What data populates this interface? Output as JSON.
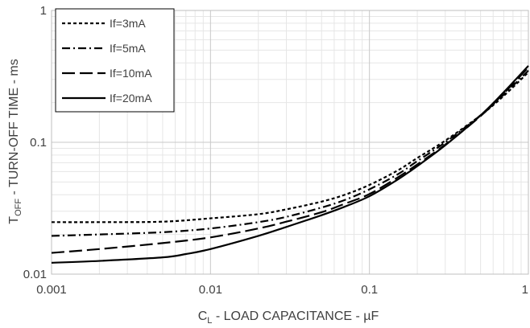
{
  "chart_data": {
    "type": "line",
    "x_scale": "log",
    "y_scale": "log",
    "xlim": [
      0.001,
      1
    ],
    "ylim": [
      0.01,
      1
    ],
    "grid": true,
    "legend_position": "top-left",
    "x_tick_labels": [
      "0.001",
      "0.01",
      "0.1",
      "1"
    ],
    "y_tick_labels": [
      "0.01",
      "0.1",
      "1"
    ],
    "xlabel": {
      "main": "C",
      "sub": "L",
      "rest": " - LOAD CAPACITANCE - µF"
    },
    "ylabel": {
      "main": "T",
      "sub": "OFF",
      "rest": " - TURN-OFF TIME - ms"
    },
    "series": [
      {
        "name": "If=3mA",
        "dash": "short-dash",
        "x": [
          0.001,
          0.002,
          0.005,
          0.01,
          0.02,
          0.03,
          0.05,
          0.07,
          0.1,
          0.15,
          0.2,
          0.3,
          0.5,
          0.7,
          1
        ],
        "y": [
          0.0248,
          0.0248,
          0.025,
          0.0265,
          0.0285,
          0.031,
          0.0355,
          0.04,
          0.0475,
          0.061,
          0.076,
          0.103,
          0.16,
          0.225,
          0.34
        ]
      },
      {
        "name": "If=5mA",
        "dash": "dash-dot",
        "x": [
          0.001,
          0.002,
          0.005,
          0.01,
          0.02,
          0.03,
          0.05,
          0.07,
          0.1,
          0.15,
          0.2,
          0.3,
          0.5,
          0.7,
          1
        ],
        "y": [
          0.0195,
          0.02,
          0.0208,
          0.0222,
          0.0248,
          0.0272,
          0.032,
          0.0365,
          0.044,
          0.057,
          0.072,
          0.1,
          0.16,
          0.23,
          0.35
        ]
      },
      {
        "name": "If=10mA",
        "dash": "long-dash",
        "x": [
          0.001,
          0.002,
          0.005,
          0.01,
          0.02,
          0.03,
          0.05,
          0.07,
          0.1,
          0.15,
          0.2,
          0.3,
          0.5,
          0.7,
          1
        ],
        "y": [
          0.0145,
          0.0155,
          0.0172,
          0.019,
          0.0222,
          0.025,
          0.0295,
          0.0342,
          0.0405,
          0.054,
          0.068,
          0.096,
          0.158,
          0.235,
          0.37
        ]
      },
      {
        "name": "If=20mA",
        "dash": "solid",
        "x": [
          0.001,
          0.002,
          0.005,
          0.007,
          0.01,
          0.02,
          0.03,
          0.05,
          0.07,
          0.1,
          0.15,
          0.2,
          0.3,
          0.5,
          0.7,
          1
        ],
        "y": [
          0.0122,
          0.0126,
          0.0134,
          0.0142,
          0.0155,
          0.0195,
          0.0228,
          0.028,
          0.0325,
          0.039,
          0.052,
          0.066,
          0.095,
          0.16,
          0.24,
          0.38
        ]
      }
    ]
  }
}
